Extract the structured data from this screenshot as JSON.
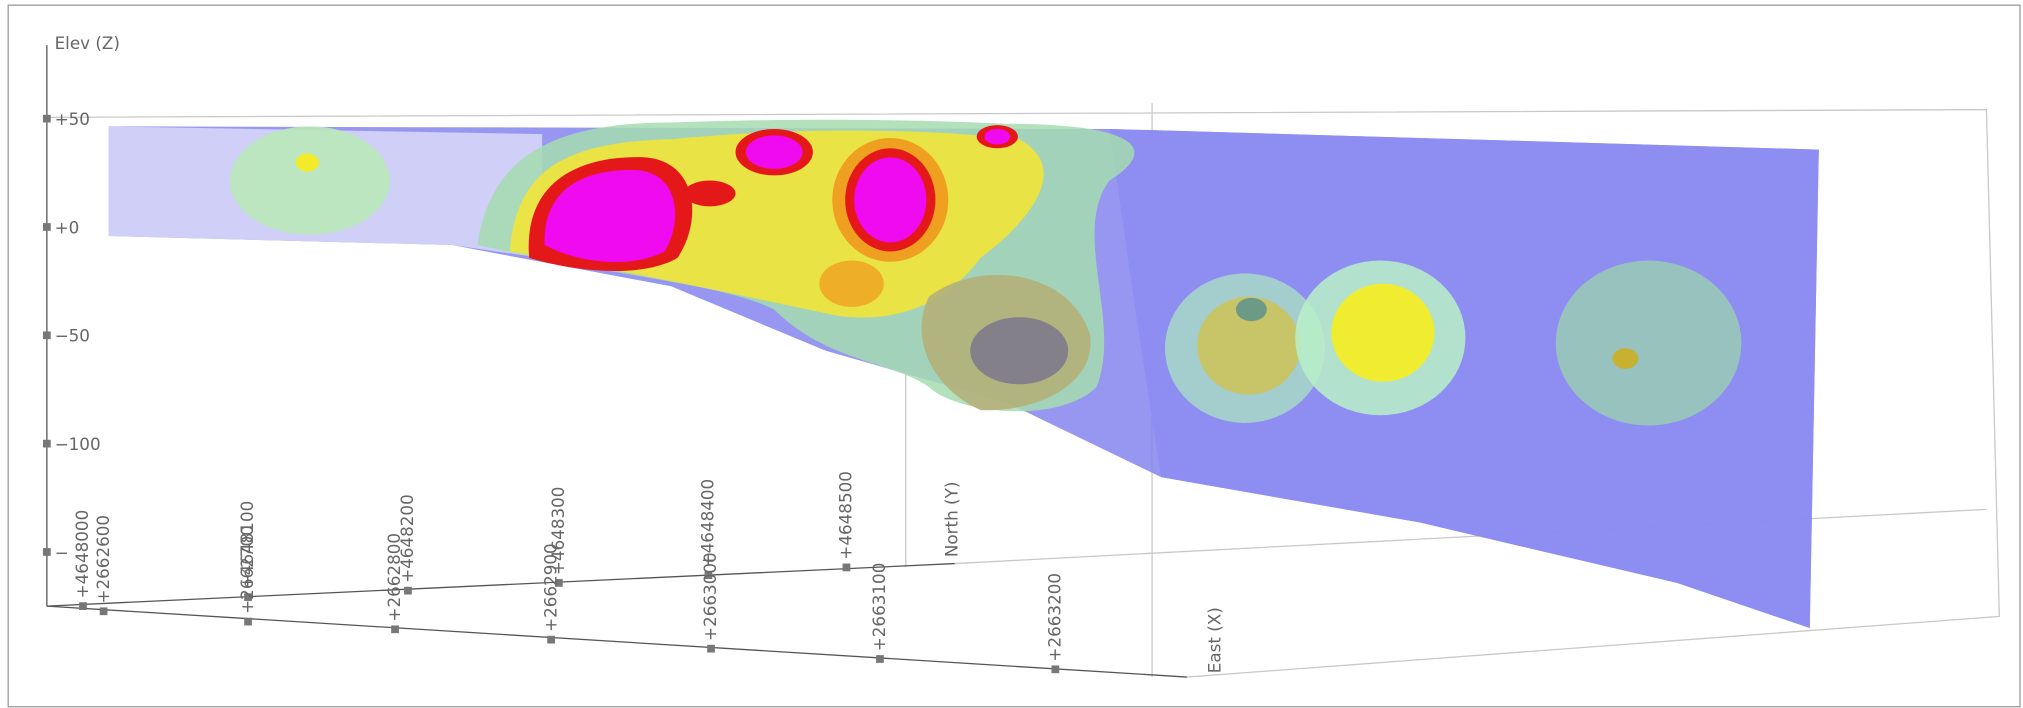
{
  "viewer": {
    "z_axis": {
      "label": "Elev (Z)",
      "ticks": [
        "+50",
        "+0",
        "−50",
        "−100",
        "−"
      ]
    },
    "north_axis": {
      "label": "North (Y)",
      "ticks": [
        "+4648000",
        "+4648100",
        "+4648200",
        "+4648300",
        "+4648400",
        "+4648500"
      ]
    },
    "east_axis": {
      "label": "East (X)",
      "ticks": [
        "+2662600",
        "+2662700",
        "+2662800",
        "+2662900",
        "+2663000",
        "+2663100",
        "+2663200"
      ]
    }
  }
}
